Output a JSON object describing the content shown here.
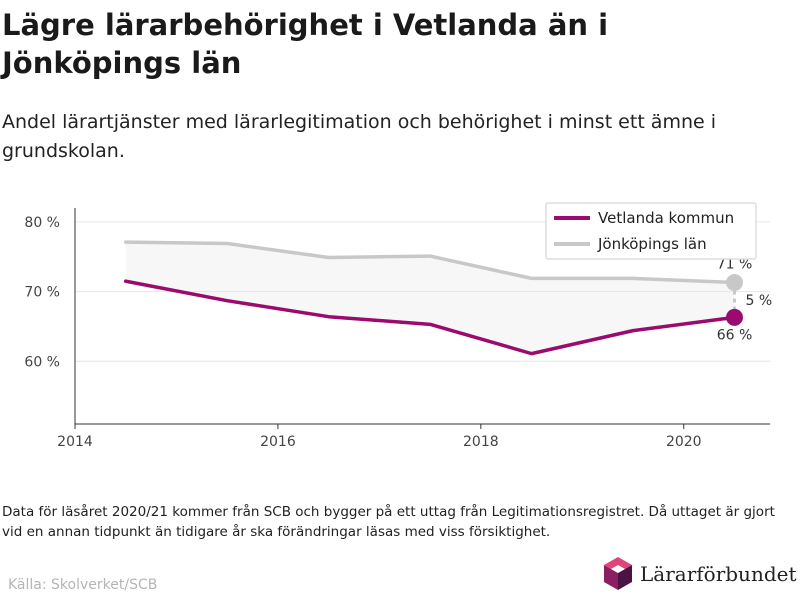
{
  "title": "Lägre lärarbehörighet i Vetlanda än i Jönköpings län",
  "subtitle": "Andel lärartjänster med lärarlegitimation och behörighet i minst ett ämne i grundskolan.",
  "note": "Data för läsåret 2020/21 kommer från SCB och bygger på ett uttag från Legitimationsregistret. Då uttaget är gjort vid en annan tidpunkt än tidigare år ska förändringar läsas med viss försiktighet.",
  "source": "Källa: Skolverket/SCB",
  "brand": {
    "name": "Lärarförbundet",
    "logo_icon": "hexagon-cube-logo"
  },
  "chart_data": {
    "type": "line",
    "x": [
      2014.5,
      2015.5,
      2016.5,
      2017.5,
      2018.5,
      2019.5,
      2020.5
    ],
    "xlim": [
      2014,
      2020.85
    ],
    "ylim": [
      51,
      82
    ],
    "x_ticks": [
      {
        "value": 2014,
        "label": "2014"
      },
      {
        "value": 2016,
        "label": "2016"
      },
      {
        "value": 2018,
        "label": "2018"
      },
      {
        "value": 2020,
        "label": "2020"
      }
    ],
    "y_ticks": [
      {
        "value": 60,
        "label": "60 %"
      },
      {
        "value": 70,
        "label": "70 %"
      },
      {
        "value": 80,
        "label": "80 %"
      }
    ],
    "grid": true,
    "legend_position": "top-right",
    "series": [
      {
        "name": "Vetlanda kommun",
        "color": "#9b0a6e",
        "values": [
          71.5,
          68.7,
          66.4,
          65.3,
          61.1,
          64.4,
          66.3
        ]
      },
      {
        "name": "Jönköpings län",
        "color": "#c8c8c8",
        "values": [
          77.1,
          76.9,
          74.9,
          75.1,
          71.9,
          71.9,
          71.3
        ]
      }
    ],
    "annotations": [
      {
        "text": "71 %",
        "x": 2020.5,
        "y": 71.3,
        "position": "above"
      },
      {
        "text": "66 %",
        "x": 2020.5,
        "y": 66.3,
        "position": "below"
      },
      {
        "text": "5 %",
        "x": 2020.5,
        "y": 68.8,
        "position": "right"
      }
    ]
  }
}
